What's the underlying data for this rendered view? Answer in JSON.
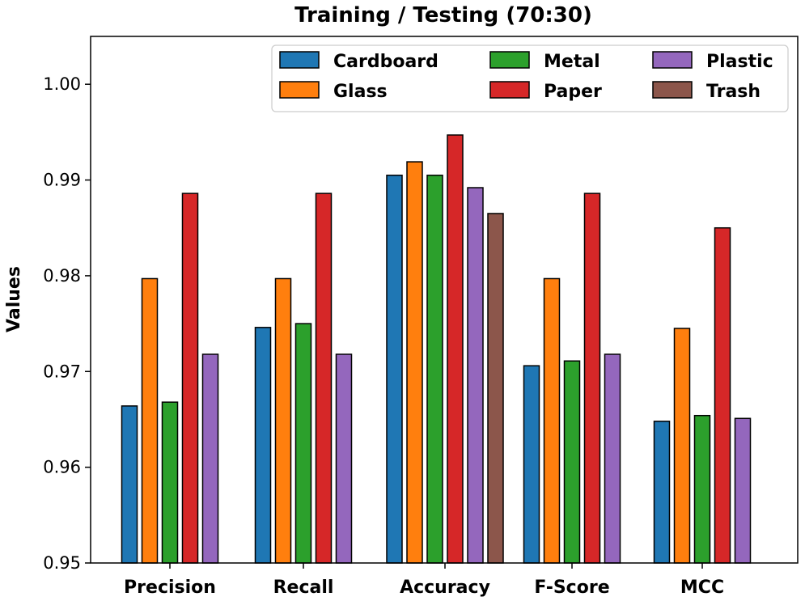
{
  "chart_data": {
    "type": "bar",
    "title": "Training / Testing (70:30)",
    "xlabel": "",
    "ylabel": "Values",
    "ylim": [
      0.95,
      1.005
    ],
    "yticks": [
      "0.95",
      "0.96",
      "0.97",
      "0.98",
      "0.99",
      "1.00"
    ],
    "categories": [
      "Precision",
      "Recall",
      "Accuracy",
      "F-Score",
      "MCC"
    ],
    "series": [
      {
        "name": "Cardboard",
        "color": "#1f77b4",
        "values": [
          0.9664,
          0.9746,
          0.9905,
          0.9706,
          0.9648
        ]
      },
      {
        "name": "Glass",
        "color": "#ff7f0e",
        "values": [
          0.9797,
          0.9797,
          0.9919,
          0.9797,
          0.9745
        ]
      },
      {
        "name": "Metal",
        "color": "#2ca02c",
        "values": [
          0.9668,
          0.975,
          0.9905,
          0.9711,
          0.9654
        ]
      },
      {
        "name": "Paper",
        "color": "#d62728",
        "values": [
          0.9886,
          0.9886,
          0.9947,
          0.9886,
          0.985
        ]
      },
      {
        "name": "Plastic",
        "color": "#9467bd",
        "values": [
          0.9718,
          0.9718,
          0.9892,
          0.9718,
          0.9651
        ]
      },
      {
        "name": "Trash",
        "color": "#8c564b",
        "values": [
          null,
          null,
          0.9865,
          null,
          null
        ]
      }
    ],
    "legend": {
      "location": "top-right",
      "columns": 3
    }
  }
}
